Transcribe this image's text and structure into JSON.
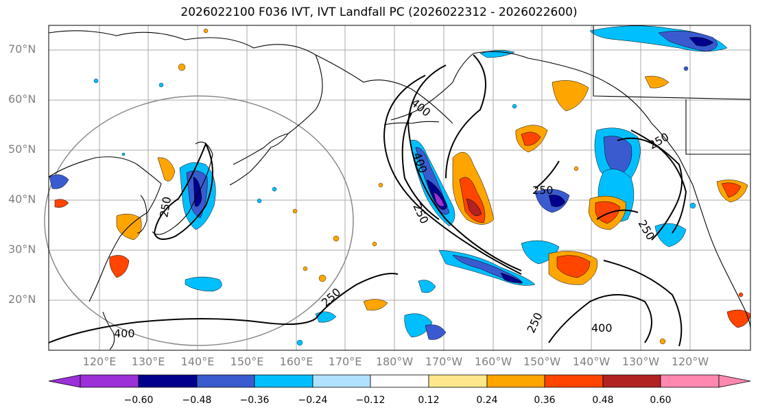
{
  "title": "2026022100 F036 IVT, IVT Landfall PC (2026022312 - 2026022600)",
  "lat_labels": [
    "70°N",
    "60°N",
    "50°N",
    "40°N",
    "30°N",
    "20°N"
  ],
  "lon_labels": [
    "120°E",
    "130°E",
    "140°E",
    "150°E",
    "160°E",
    "170°E",
    "180°W",
    "170°W",
    "160°W",
    "150°W",
    "140°W",
    "130°W",
    "120°W"
  ],
  "contour_labels": [
    "400",
    "250",
    "250",
    "250",
    "400",
    "250",
    "250",
    "400",
    "250",
    "400",
    "250"
  ],
  "colorbar": {
    "tick_labels": [
      "−0.60",
      "−0.48",
      "−0.36",
      "−0.24",
      "−0.12",
      "0.12",
      "0.24",
      "0.36",
      "0.48",
      "0.60"
    ],
    "colors": [
      "#9b30d9",
      "#00008b",
      "#3a5bd0",
      "#00bfff",
      "#b0e2ff",
      "#ffffff",
      "#ffe88c",
      "#ffa500",
      "#ff4500",
      "#b22222",
      "#ff88b0"
    ]
  }
}
